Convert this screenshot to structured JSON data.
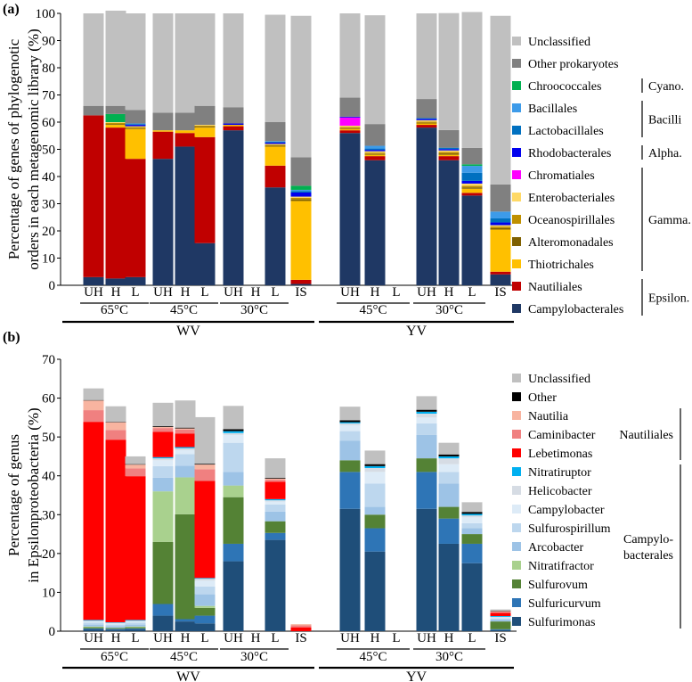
{
  "chart_data": [
    {
      "panel_label": "(a)",
      "type": "bar",
      "stacked": true,
      "ylabel_lines": [
        "Percentage of genes of phylogenotic",
        "orders in each metagenomic library (%)"
      ],
      "ylim": [
        0,
        100
      ],
      "yticks": [
        "0",
        "10",
        "20",
        "30",
        "40",
        "50",
        "60",
        "70",
        "80",
        "90",
        "100"
      ],
      "categories": [
        "UH",
        "H",
        "L",
        "UH",
        "H",
        "L",
        "UH",
        "H",
        "L",
        "IS",
        "UH",
        "H",
        "L",
        "UH",
        "H",
        "L",
        "IS"
      ],
      "temperature_groups": [
        {
          "label": "65°C",
          "from": 0,
          "to": 2
        },
        {
          "label": "45°C",
          "from": 3,
          "to": 5
        },
        {
          "label": "30°C",
          "from": 6,
          "to": 8
        },
        {
          "label": "45°C",
          "from": 10,
          "to": 12
        },
        {
          "label": "30°C",
          "from": 13,
          "to": 15
        }
      ],
      "site_groups": [
        {
          "label": "WV",
          "from": 0,
          "to": 9
        },
        {
          "label": "YV",
          "from": 10,
          "to": 16
        }
      ],
      "series": [
        {
          "name": "Campylobacterales",
          "color": "#1f3864",
          "values": [
            3,
            2.5,
            3,
            46.5,
            51,
            15.5,
            57,
            0,
            36,
            0.5,
            56,
            46,
            0,
            58,
            46,
            33,
            4
          ]
        },
        {
          "name": "Nautiliales",
          "color": "#c00000",
          "values": [
            59.5,
            55.5,
            43.5,
            10,
            5,
            39,
            1.5,
            0,
            8,
            1.5,
            1,
            1.5,
            0,
            1,
            1.5,
            1,
            1
          ]
        },
        {
          "name": "Thiotrichales",
          "color": "#ffc000",
          "values": [
            0,
            1,
            11,
            0.5,
            1,
            3.5,
            0.5,
            0,
            7,
            29,
            0.5,
            0.5,
            0,
            0.5,
            0.5,
            1.5,
            15.5
          ]
        },
        {
          "name": "Alteromonadales",
          "color": "#7f6000",
          "values": [
            0,
            0.3,
            0.3,
            0,
            0,
            0.3,
            0,
            0,
            0.3,
            0.6,
            0.3,
            0.3,
            0,
            0.3,
            0.5,
            0.5,
            0.5
          ]
        },
        {
          "name": "Oceanospirillales",
          "color": "#bf9000",
          "values": [
            0,
            0.4,
            0.4,
            0,
            0,
            0.4,
            0,
            0,
            0.4,
            0.6,
            0.4,
            0.5,
            0,
            0.4,
            0.5,
            0.6,
            0.6
          ]
        },
        {
          "name": "Enterobacteriales",
          "color": "#ffd966",
          "values": [
            0,
            0.3,
            0.3,
            0,
            0,
            0.3,
            0,
            0,
            0.3,
            0.4,
            0.5,
            0.5,
            0,
            0.5,
            0.6,
            0.8,
            0.5
          ]
        },
        {
          "name": "Chromatiales",
          "color": "#ff00ff",
          "values": [
            0,
            0,
            0,
            0,
            0,
            0,
            0,
            0,
            0,
            0,
            3,
            0,
            0,
            0,
            0,
            0,
            0
          ]
        },
        {
          "name": "Rhodobacterales",
          "color": "#0000ee",
          "values": [
            0,
            0,
            0.5,
            0,
            0,
            0,
            0.5,
            0,
            0.5,
            1.5,
            0.3,
            0.5,
            0,
            0.5,
            0.5,
            1,
            1
          ]
        },
        {
          "name": "Lactobacillales",
          "color": "#0070c0",
          "values": [
            0,
            0,
            0.3,
            0,
            0,
            0,
            0,
            0,
            0.3,
            0.5,
            0,
            0.5,
            0,
            0.3,
            0.5,
            3,
            1.5
          ]
        },
        {
          "name": "Bacillales",
          "color": "#3d9be9",
          "values": [
            0,
            0,
            0.2,
            0,
            0,
            0,
            0,
            0,
            0.2,
            0.5,
            0,
            1,
            0,
            0,
            0,
            2.5,
            2.5
          ]
        },
        {
          "name": "Chroococcales",
          "color": "#00b050",
          "values": [
            0,
            3,
            0,
            0,
            0,
            0,
            0,
            0,
            0,
            1.5,
            0,
            0,
            0,
            0,
            0,
            0.6,
            0
          ]
        },
        {
          "name": "Other prokaryotes",
          "color": "#808080",
          "values": [
            3.5,
            3,
            5,
            6.5,
            6.5,
            7,
            6,
            0,
            7,
            10.5,
            7,
            8,
            0,
            7,
            6.5,
            6,
            10
          ]
        },
        {
          "name": "Unclassified",
          "color": "#c0c0c0",
          "values": [
            34,
            35,
            35.5,
            36.5,
            36.5,
            34,
            34.5,
            0,
            39.5,
            52,
            31,
            40,
            0,
            31.5,
            43,
            50,
            62
          ]
        }
      ],
      "legend_groups": [
        {
          "label": "Cyano.",
          "members": [
            "Chroococcales"
          ]
        },
        {
          "label": "Bacilli",
          "members": [
            "Bacillales",
            "Lactobacillales"
          ]
        },
        {
          "label": "Alpha.",
          "members": [
            "Rhodobacterales"
          ]
        },
        {
          "label": "Gamma.",
          "members": [
            "Chromatiales",
            "Enterobacteriales",
            "Oceanospirillales",
            "Alteromonadales",
            "Thiotrichales"
          ]
        },
        {
          "label": "Epsilon.",
          "members": [
            "Nautiliales",
            "Campylobacterales"
          ]
        }
      ]
    },
    {
      "panel_label": "(b)",
      "type": "bar",
      "stacked": true,
      "ylabel_lines": [
        "Percentage of genus",
        "in Epsilonproteobacteria (%)"
      ],
      "ylim": [
        0,
        70
      ],
      "yticks": [
        "0",
        "10",
        "20",
        "30",
        "40",
        "50",
        "60",
        "70"
      ],
      "categories": [
        "UH",
        "H",
        "L",
        "UH",
        "H",
        "L",
        "UH",
        "H",
        "L",
        "IS",
        "UH",
        "H",
        "L",
        "UH",
        "H",
        "L",
        "IS"
      ],
      "temperature_groups": [
        {
          "label": "65°C",
          "from": 0,
          "to": 2
        },
        {
          "label": "45°C",
          "from": 3,
          "to": 5
        },
        {
          "label": "30°C",
          "from": 6,
          "to": 8
        },
        {
          "label": "45°C",
          "from": 10,
          "to": 12
        },
        {
          "label": "30°C",
          "from": 13,
          "to": 15
        }
      ],
      "site_groups": [
        {
          "label": "WV",
          "from": 0,
          "to": 9
        },
        {
          "label": "YV",
          "from": 10,
          "to": 16
        }
      ],
      "series": [
        {
          "name": "Sulfurimonas",
          "color": "#1f4e79",
          "values": [
            0.5,
            0.4,
            0.5,
            4,
            2.5,
            2,
            18,
            0,
            23.5,
            0,
            31.5,
            20.5,
            0,
            31.5,
            22.5,
            17.5,
            0.3
          ]
        },
        {
          "name": "Sulfuricurvum",
          "color": "#2e75b6",
          "values": [
            0.2,
            0.2,
            0.2,
            3,
            0.6,
            2,
            4.5,
            0,
            1.8,
            0,
            9.5,
            6,
            0,
            9.5,
            6.5,
            5,
            0.2
          ]
        },
        {
          "name": "Sulfurovum",
          "color": "#548235",
          "values": [
            0.3,
            0.2,
            0.3,
            16,
            27,
            2,
            12,
            0,
            3,
            0,
            3,
            3.5,
            0,
            3.5,
            3,
            2.5,
            2
          ]
        },
        {
          "name": "Nitratifractor",
          "color": "#a9d18e",
          "values": [
            0.2,
            0.1,
            0.2,
            13,
            9.5,
            0.5,
            3,
            0,
            0,
            0,
            0,
            0,
            0,
            0,
            0,
            0,
            0
          ]
        },
        {
          "name": "Arcobacter",
          "color": "#9dc3e6",
          "values": [
            0.5,
            0.4,
            0.5,
            3.5,
            3,
            3,
            3.5,
            0,
            2.5,
            0,
            5,
            2,
            0,
            6,
            6,
            1.5,
            0.5
          ]
        },
        {
          "name": "Sulfurospirillum",
          "color": "#bdd7ee",
          "values": [
            0.5,
            0.4,
            0.5,
            3,
            3,
            2,
            7.5,
            0,
            1.8,
            0,
            2.5,
            6,
            0,
            3,
            3,
            1.3,
            0.3
          ]
        },
        {
          "name": "Campylobacter",
          "color": "#ddebf7",
          "values": [
            0.3,
            0.3,
            0.3,
            1.5,
            1,
            1.5,
            2,
            0,
            0.8,
            0,
            1.5,
            3,
            0,
            1.5,
            2,
            1.5,
            0.2
          ]
        },
        {
          "name": "Helicobacter",
          "color": "#d6dce4",
          "values": [
            0.2,
            0.2,
            0.2,
            0.5,
            0.5,
            0.5,
            0.5,
            0,
            0.3,
            0,
            0.5,
            1,
            0,
            1,
            1.5,
            0.5,
            0.2
          ]
        },
        {
          "name": "Nitratiruptor",
          "color": "#00b0f0",
          "values": [
            0.2,
            0.1,
            0.2,
            0.3,
            0.3,
            0.2,
            0.5,
            0,
            0.3,
            0,
            0.3,
            0.5,
            0,
            0.5,
            0.5,
            0.4,
            0.2
          ]
        },
        {
          "name": "Lebetimonas",
          "color": "#ff0000",
          "values": [
            51,
            47,
            37,
            6.5,
            3.5,
            25,
            0,
            0,
            4.5,
            1,
            0,
            0,
            0,
            0,
            0,
            0,
            0.8
          ]
        },
        {
          "name": "Caminibacter",
          "color": "#f08080",
          "values": [
            3,
            2.5,
            2,
            1,
            1,
            3,
            0,
            0,
            0.5,
            0.5,
            0,
            0,
            0,
            0,
            0,
            0,
            0.3
          ]
        },
        {
          "name": "Nautilia",
          "color": "#f8b4a0",
          "values": [
            2.5,
            2,
            1,
            0.3,
            0.3,
            1.2,
            0,
            0,
            0.3,
            0.3,
            0,
            0,
            0,
            0,
            0,
            0,
            0.2
          ]
        },
        {
          "name": "Other",
          "color": "#000000",
          "values": [
            0.1,
            0.1,
            0.1,
            0.2,
            0.2,
            0.2,
            0.5,
            0,
            0.2,
            0,
            0.5,
            0.5,
            0,
            0.5,
            0.5,
            0.5,
            0.1
          ]
        },
        {
          "name": "Unclassified",
          "color": "#c0c0c0",
          "values": [
            3,
            4,
            2,
            6,
            7,
            12,
            6,
            0,
            5,
            0,
            3.5,
            3.5,
            0,
            3.5,
            3,
            2.5,
            0.3
          ]
        }
      ],
      "legend_groups": [
        {
          "label": "Nautiliales",
          "members": [
            "Nautilia",
            "Caminibacter",
            "Lebetimonas"
          ]
        },
        {
          "label": "Campylo-\nbacterales",
          "members": [
            "Nitratiruptor",
            "Helicobacter",
            "Campylobacter",
            "Sulfurospirillum",
            "Arcobacter",
            "Nitratifractor",
            "Sulfurovum",
            "Sulfuricurvum",
            "Sulfurimonas"
          ]
        }
      ]
    }
  ]
}
